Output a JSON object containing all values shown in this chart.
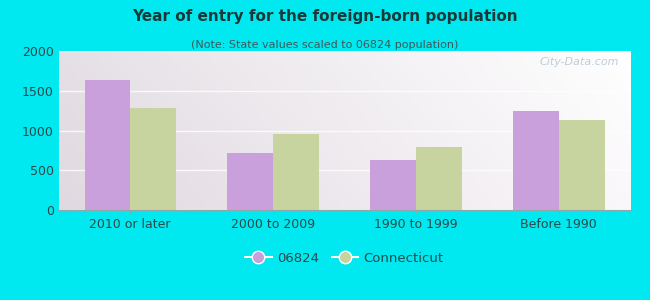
{
  "title": "Year of entry for the foreign-born population",
  "subtitle": "(Note: State values scaled to 06824 population)",
  "categories": [
    "2010 or later",
    "2000 to 2009",
    "1990 to 1999",
    "Before 1990"
  ],
  "values_06824": [
    1630,
    715,
    625,
    1240
  ],
  "values_connecticut": [
    1280,
    960,
    795,
    1130
  ],
  "color_06824": "#c9a0dc",
  "color_connecticut": "#c8d4a0",
  "background_outer": "#00e8f0",
  "background_inner_tl": "#d8edd8",
  "background_inner_tr": "#f5f8f5",
  "background_inner_bl": "#d0e8d0",
  "background_inner_br": "#f0f5f0",
  "ylim": [
    0,
    2000
  ],
  "yticks": [
    0,
    500,
    1000,
    1500,
    2000
  ],
  "bar_width": 0.32,
  "title_fontsize": 11,
  "subtitle_fontsize": 8,
  "tick_fontsize": 9,
  "legend_label_06824": "06824",
  "legend_label_connecticut": "Connecticut",
  "title_color": "#1a3a3a",
  "subtitle_color": "#3a5a5a",
  "tick_color": "#2a4a4a",
  "watermark": "City-Data.com"
}
